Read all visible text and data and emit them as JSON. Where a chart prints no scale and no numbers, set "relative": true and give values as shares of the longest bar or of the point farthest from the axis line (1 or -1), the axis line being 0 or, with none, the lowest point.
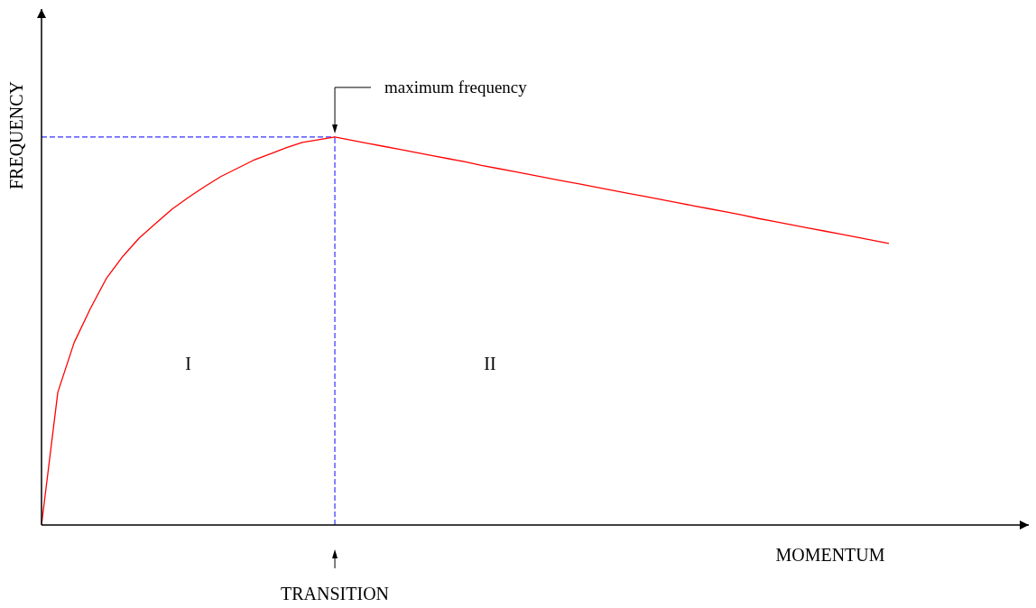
{
  "chart_data": {
    "type": "line",
    "relative": true,
    "xlabel": "MOMENTUM",
    "ylabel": "FREQUENCY",
    "categories": [
      null,
      null,
      null,
      null,
      null,
      null,
      null,
      null,
      null,
      null,
      null,
      null,
      null,
      null,
      null,
      null,
      null,
      null,
      null,
      null,
      null,
      null,
      null,
      null,
      null,
      null,
      null,
      null,
      null,
      null,
      null,
      null,
      null,
      null,
      null,
      null,
      null,
      null,
      null,
      null,
      null,
      null,
      null,
      null,
      null,
      null,
      null,
      null,
      null,
      null,
      null,
      null,
      null
    ],
    "series": [
      {
        "color": "#ff0000",
        "values": [
          0,
          0.342,
          0.47,
          0.558,
          0.637,
          0.693,
          0.74,
          0.777,
          0.814,
          0.844,
          0.872,
          0.898,
          0.919,
          0.94,
          0.956,
          0.972,
          0.986,
          0.993,
          1,
          0.992,
          0.984,
          0.976,
          0.968,
          0.96,
          0.952,
          0.944,
          0.936,
          0.927,
          0.919,
          0.911,
          0.903,
          0.895,
          0.887,
          0.879,
          0.871,
          0.863,
          0.855,
          0.847,
          0.839,
          0.831,
          0.823,
          0.815,
          0.807,
          0.799,
          0.79,
          0.782,
          0.774,
          0.766,
          0.758,
          0.75,
          0.742,
          0.734,
          0.726
        ]
      }
    ],
    "ref_lines": [
      {
        "axis": "y",
        "value": 1,
        "color": "#3333ff",
        "line_style": "dashed"
      }
    ],
    "annotations": [
      "maximum frequency",
      "I",
      "II",
      "TRANSITION"
    ],
    "marker": "none",
    "grid": false,
    "legend": false
  }
}
